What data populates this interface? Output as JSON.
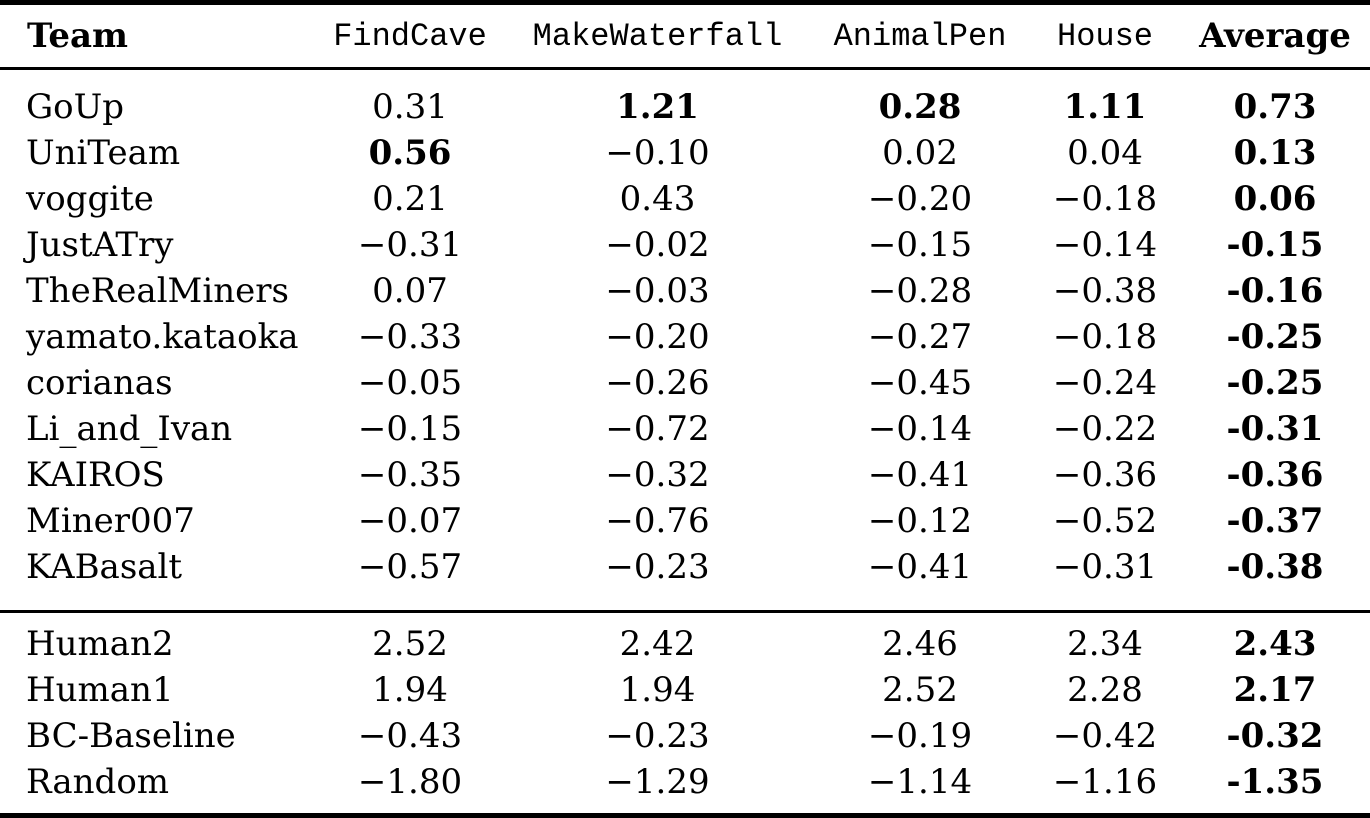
{
  "colors": {
    "text": "#000000",
    "background": "#ffffff",
    "rules": "#000000"
  },
  "table": {
    "columns": [
      {
        "label": "Team"
      },
      {
        "label": "FindCave"
      },
      {
        "label": "MakeWaterfall"
      },
      {
        "label": "AnimalPen"
      },
      {
        "label": "House"
      },
      {
        "label": "Average"
      }
    ],
    "sections": [
      {
        "name": "teams",
        "rows": [
          {
            "team": "GoUp",
            "cells": [
              {
                "t": "0.31",
                "b": false
              },
              {
                "t": "1.21",
                "b": true
              },
              {
                "t": "0.28",
                "b": true
              },
              {
                "t": "1.11",
                "b": true
              },
              {
                "t": "0.73",
                "b": true
              }
            ]
          },
          {
            "team": "UniTeam",
            "cells": [
              {
                "t": "0.56",
                "b": true
              },
              {
                "t": "−0.10",
                "b": false
              },
              {
                "t": "0.02",
                "b": false
              },
              {
                "t": "0.04",
                "b": false
              },
              {
                "t": "0.13",
                "b": true
              }
            ]
          },
          {
            "team": "voggite",
            "cells": [
              {
                "t": "0.21",
                "b": false
              },
              {
                "t": "0.43",
                "b": false
              },
              {
                "t": "−0.20",
                "b": false
              },
              {
                "t": "−0.18",
                "b": false
              },
              {
                "t": "0.06",
                "b": true
              }
            ]
          },
          {
            "team": "JustATry",
            "cells": [
              {
                "t": "−0.31",
                "b": false
              },
              {
                "t": "−0.02",
                "b": false
              },
              {
                "t": "−0.15",
                "b": false
              },
              {
                "t": "−0.14",
                "b": false
              },
              {
                "t": "-0.15",
                "b": true
              }
            ]
          },
          {
            "team": "TheRealMiners",
            "cells": [
              {
                "t": "0.07",
                "b": false
              },
              {
                "t": "−0.03",
                "b": false
              },
              {
                "t": "−0.28",
                "b": false
              },
              {
                "t": "−0.38",
                "b": false
              },
              {
                "t": "-0.16",
                "b": true
              }
            ]
          },
          {
            "team": "yamato.kataoka",
            "cells": [
              {
                "t": "−0.33",
                "b": false
              },
              {
                "t": "−0.20",
                "b": false
              },
              {
                "t": "−0.27",
                "b": false
              },
              {
                "t": "−0.18",
                "b": false
              },
              {
                "t": "-0.25",
                "b": true
              }
            ]
          },
          {
            "team": "corianas",
            "cells": [
              {
                "t": "−0.05",
                "b": false
              },
              {
                "t": "−0.26",
                "b": false
              },
              {
                "t": "−0.45",
                "b": false
              },
              {
                "t": "−0.24",
                "b": false
              },
              {
                "t": "-0.25",
                "b": true
              }
            ]
          },
          {
            "team": "Li_and_Ivan",
            "cells": [
              {
                "t": "−0.15",
                "b": false
              },
              {
                "t": "−0.72",
                "b": false
              },
              {
                "t": "−0.14",
                "b": false
              },
              {
                "t": "−0.22",
                "b": false
              },
              {
                "t": "-0.31",
                "b": true
              }
            ]
          },
          {
            "team": "KAIROS",
            "cells": [
              {
                "t": "−0.35",
                "b": false
              },
              {
                "t": "−0.32",
                "b": false
              },
              {
                "t": "−0.41",
                "b": false
              },
              {
                "t": "−0.36",
                "b": false
              },
              {
                "t": "-0.36",
                "b": true
              }
            ]
          },
          {
            "team": "Miner007",
            "cells": [
              {
                "t": "−0.07",
                "b": false
              },
              {
                "t": "−0.76",
                "b": false
              },
              {
                "t": "−0.12",
                "b": false
              },
              {
                "t": "−0.52",
                "b": false
              },
              {
                "t": "-0.37",
                "b": true
              }
            ]
          },
          {
            "team": "KABasalt",
            "cells": [
              {
                "t": "−0.57",
                "b": false
              },
              {
                "t": "−0.23",
                "b": false
              },
              {
                "t": "−0.41",
                "b": false
              },
              {
                "t": "−0.31",
                "b": false
              },
              {
                "t": "-0.38",
                "b": true
              }
            ]
          }
        ]
      },
      {
        "name": "baselines",
        "rows": [
          {
            "team": "Human2",
            "cells": [
              {
                "t": "2.52",
                "b": false
              },
              {
                "t": "2.42",
                "b": false
              },
              {
                "t": "2.46",
                "b": false
              },
              {
                "t": "2.34",
                "b": false
              },
              {
                "t": "2.43",
                "b": true
              }
            ]
          },
          {
            "team": "Human1",
            "cells": [
              {
                "t": "1.94",
                "b": false
              },
              {
                "t": "1.94",
                "b": false
              },
              {
                "t": "2.52",
                "b": false
              },
              {
                "t": "2.28",
                "b": false
              },
              {
                "t": "2.17",
                "b": true
              }
            ]
          },
          {
            "team": "BC-Baseline",
            "cells": [
              {
                "t": "−0.43",
                "b": false
              },
              {
                "t": "−0.23",
                "b": false
              },
              {
                "t": "−0.19",
                "b": false
              },
              {
                "t": "−0.42",
                "b": false
              },
              {
                "t": "-0.32",
                "b": true
              }
            ]
          },
          {
            "team": "Random",
            "cells": [
              {
                "t": "−1.80",
                "b": false
              },
              {
                "t": "−1.29",
                "b": false
              },
              {
                "t": "−1.14",
                "b": false
              },
              {
                "t": "−1.16",
                "b": false
              },
              {
                "t": "-1.35",
                "b": true
              }
            ]
          }
        ]
      }
    ]
  }
}
